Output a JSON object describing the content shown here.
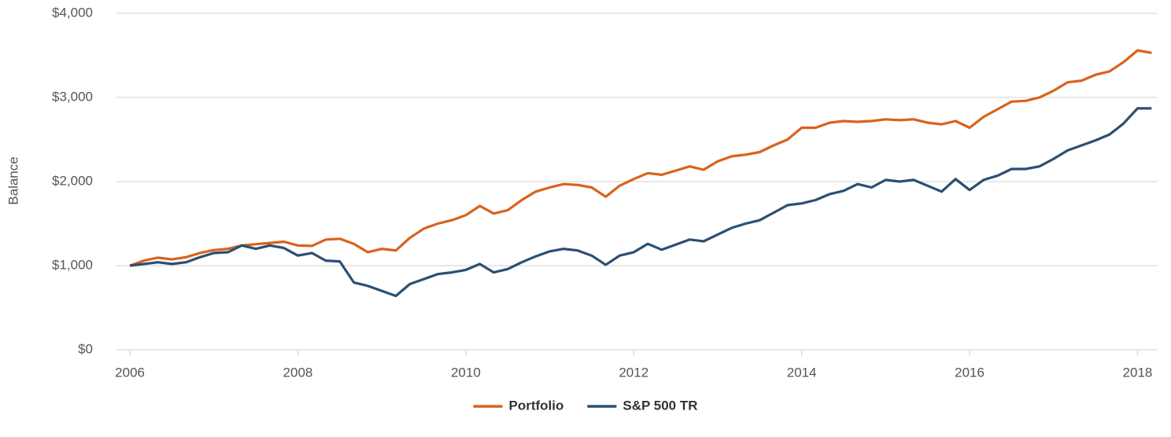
{
  "chart_data": {
    "type": "line",
    "y_label": "Balance",
    "x": [
      2006.0,
      2006.167,
      2006.333,
      2006.5,
      2006.667,
      2006.833,
      2007.0,
      2007.167,
      2007.333,
      2007.5,
      2007.667,
      2007.833,
      2008.0,
      2008.167,
      2008.333,
      2008.5,
      2008.667,
      2008.833,
      2009.0,
      2009.167,
      2009.333,
      2009.5,
      2009.667,
      2009.833,
      2010.0,
      2010.167,
      2010.333,
      2010.5,
      2010.667,
      2010.833,
      2011.0,
      2011.167,
      2011.333,
      2011.5,
      2011.667,
      2011.833,
      2012.0,
      2012.167,
      2012.333,
      2012.5,
      2012.667,
      2012.833,
      2013.0,
      2013.167,
      2013.333,
      2013.5,
      2013.667,
      2013.833,
      2014.0,
      2014.167,
      2014.333,
      2014.5,
      2014.667,
      2014.833,
      2015.0,
      2015.167,
      2015.333,
      2015.5,
      2015.667,
      2015.833,
      2016.0,
      2016.167,
      2016.333,
      2016.5,
      2016.667,
      2016.833,
      2017.0,
      2017.167,
      2017.333,
      2017.5,
      2017.667,
      2017.833,
      2018.0,
      2018.167
    ],
    "series": [
      {
        "name": "Portfolio",
        "color": "#d9621b",
        "values": [
          1000,
          1060,
          1095,
          1075,
          1100,
          1150,
          1185,
          1200,
          1240,
          1255,
          1270,
          1285,
          1240,
          1235,
          1310,
          1320,
          1260,
          1160,
          1200,
          1180,
          1330,
          1440,
          1500,
          1540,
          1600,
          1710,
          1620,
          1660,
          1780,
          1880,
          1930,
          1970,
          1960,
          1930,
          1820,
          1950,
          2030,
          2100,
          2080,
          2130,
          2180,
          2140,
          2240,
          2300,
          2320,
          2350,
          2430,
          2500,
          2640,
          2640,
          2700,
          2720,
          2710,
          2720,
          2740,
          2730,
          2740,
          2700,
          2680,
          2720,
          2640,
          2770,
          2860,
          2950,
          2960,
          3000,
          3080,
          3180,
          3200,
          3270,
          3310,
          3420,
          3560,
          3530
        ]
      },
      {
        "name": "S&P 500 TR",
        "color": "#2c4f73",
        "values": [
          1000,
          1020,
          1040,
          1020,
          1040,
          1100,
          1150,
          1160,
          1240,
          1200,
          1240,
          1210,
          1120,
          1150,
          1060,
          1050,
          800,
          760,
          700,
          640,
          780,
          840,
          900,
          920,
          950,
          1020,
          920,
          960,
          1040,
          1110,
          1170,
          1200,
          1180,
          1120,
          1010,
          1120,
          1160,
          1260,
          1190,
          1250,
          1310,
          1290,
          1370,
          1450,
          1500,
          1540,
          1630,
          1720,
          1740,
          1780,
          1850,
          1890,
          1970,
          1930,
          2020,
          2000,
          2020,
          1950,
          1880,
          2030,
          1900,
          2020,
          2070,
          2150,
          2150,
          2180,
          2270,
          2370,
          2430,
          2490,
          2560,
          2690,
          2870,
          2870
        ]
      }
    ],
    "xlim": [
      2005.84,
      2018.23
    ],
    "xticks": [
      2006,
      2008,
      2010,
      2012,
      2014,
      2016,
      2018
    ],
    "ylim": [
      0,
      4000
    ],
    "yticks": [
      {
        "value": 0,
        "label": "$0"
      },
      {
        "value": 1000,
        "label": "$1,000"
      },
      {
        "value": 2000,
        "label": "$2,000"
      },
      {
        "value": 3000,
        "label": "$3,000"
      },
      {
        "value": 4000,
        "label": "$4,000"
      }
    ],
    "grid": true,
    "legend": "bottom"
  }
}
